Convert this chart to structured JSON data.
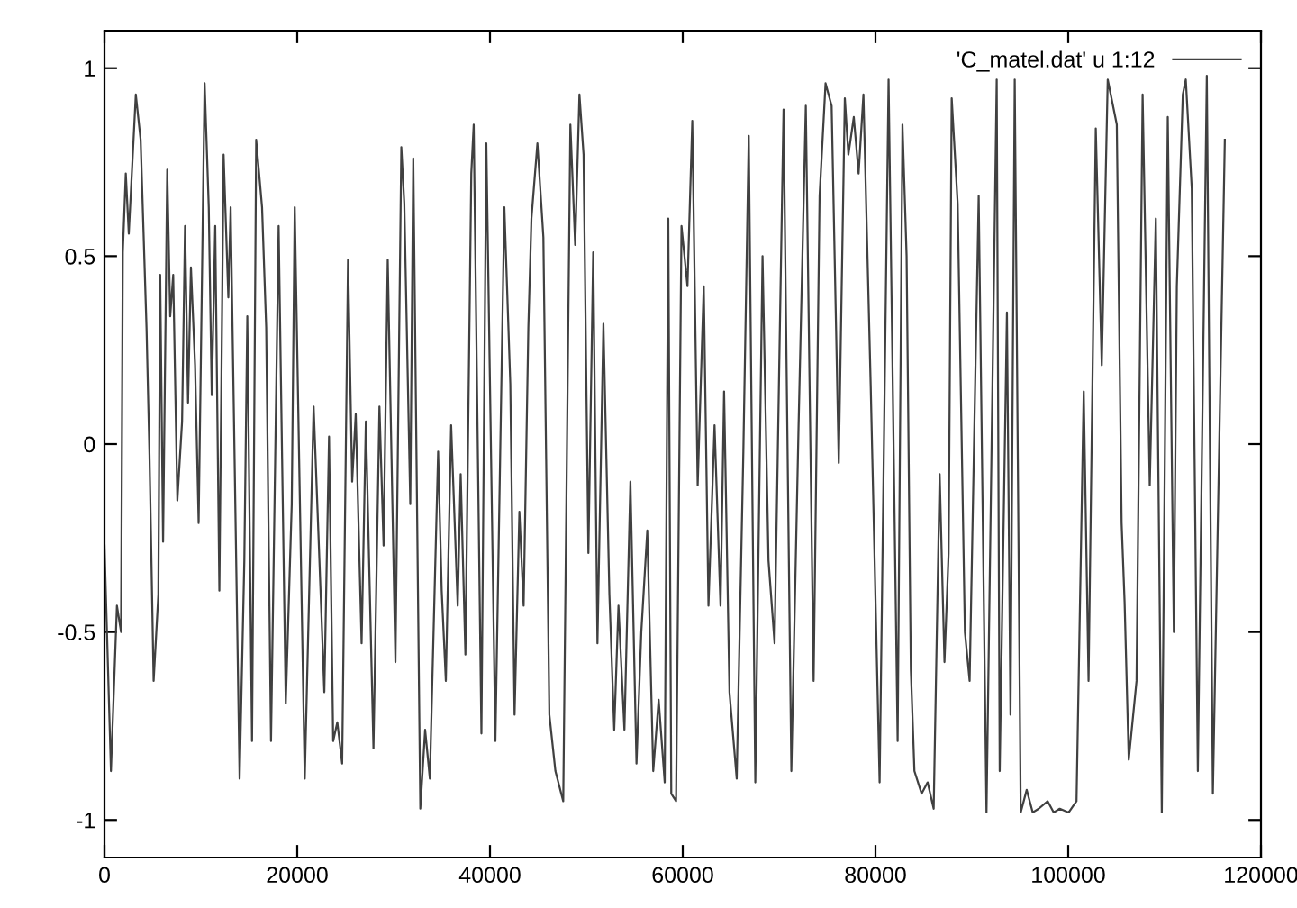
{
  "chart_data": {
    "type": "line",
    "xlim": [
      0,
      120000
    ],
    "xticks": [
      0,
      20000,
      40000,
      60000,
      80000,
      100000,
      120000
    ],
    "ylim": [
      -1.1,
      1.1
    ],
    "yticks": [
      -1,
      -0.5,
      0,
      0.5,
      1
    ],
    "grid": false,
    "legend": "top right",
    "marker": "none",
    "line_style": "solid",
    "series": [
      {
        "name": "'C_matel.dat' u 1:12",
        "color": "#404040",
        "x": [
          0,
          670,
          1290,
          1720,
          1900,
          2210,
          2520,
          3250,
          3750,
          4360,
          4670,
          5100,
          5590,
          5780,
          6080,
          6510,
          6820,
          7130,
          7560,
          8050,
          8360,
          8670,
          8970,
          9400,
          9770,
          10390,
          10820,
          11130,
          11490,
          11920,
          12360,
          12850,
          13090,
          14020,
          14510,
          14820,
          15310,
          15740,
          16350,
          16780,
          17280,
          18070,
          18810,
          19430,
          19740,
          20780,
          21700,
          22200,
          22810,
          23300,
          23730,
          24160,
          24660,
          25270,
          25700,
          26070,
          26680,
          27120,
          27910,
          28530,
          28960,
          29390,
          30190,
          30800,
          31110,
          31730,
          32040,
          32770,
          33270,
          33760,
          34620,
          34990,
          35420,
          35970,
          36650,
          36960,
          37450,
          38060,
          38310,
          39110,
          39620,
          40560,
          41490,
          42110,
          42550,
          43050,
          43490,
          43980,
          44300,
          44920,
          45540,
          46160,
          46790,
          47600,
          48340,
          48840,
          49280,
          49710,
          50210,
          50710,
          51150,
          51770,
          52390,
          52890,
          53330,
          53950,
          54570,
          55200,
          55700,
          56320,
          56940,
          57500,
          58130,
          58500,
          58810,
          59310,
          59870,
          60490,
          60990,
          61550,
          62180,
          62670,
          63300,
          63920,
          64290,
          64850,
          65600,
          66290,
          66850,
          67530,
          68280,
          68900,
          69530,
          70460,
          71270,
          72020,
          72770,
          73580,
          74200,
          74820,
          75450,
          76190,
          76820,
          77190,
          77750,
          78250,
          78750,
          79500,
          80430,
          81360,
          82300,
          82800,
          83230,
          83670,
          84040,
          84790,
          85410,
          86040,
          86660,
          87160,
          87590,
          87910,
          88530,
          89280,
          89770,
          90710,
          91520,
          92580,
          92890,
          93640,
          94010,
          94450,
          95070,
          95690,
          96320,
          96940,
          97870,
          98500,
          99120,
          100050,
          100860,
          101610,
          102110,
          102860,
          103480,
          104100,
          105040,
          105540,
          105850,
          106280,
          107090,
          107720,
          108460,
          109090,
          109710,
          110330,
          110960,
          111270,
          111890,
          112200,
          112820,
          113450,
          114380,
          115010,
          115820,
          116250
        ],
        "values": [
          -0.27,
          -0.87,
          -0.43,
          -0.5,
          0.51,
          0.72,
          0.56,
          0.93,
          0.81,
          0.31,
          -0.03,
          -0.63,
          -0.4,
          0.45,
          -0.26,
          0.73,
          0.34,
          0.45,
          -0.15,
          0.06,
          0.58,
          0.11,
          0.47,
          0.21,
          -0.21,
          0.96,
          0.63,
          0.13,
          0.58,
          -0.39,
          0.77,
          0.39,
          0.63,
          -0.89,
          -0.31,
          0.34,
          -0.79,
          0.81,
          0.63,
          0.31,
          -0.79,
          0.58,
          -0.69,
          -0.16,
          0.63,
          -0.89,
          0.1,
          -0.24,
          -0.66,
          0.02,
          -0.79,
          -0.74,
          -0.85,
          0.49,
          -0.1,
          0.08,
          -0.53,
          0.06,
          -0.81,
          0.1,
          -0.27,
          0.49,
          -0.58,
          0.79,
          0.64,
          -0.16,
          0.76,
          -0.97,
          -0.76,
          -0.89,
          -0.02,
          -0.39,
          -0.63,
          0.05,
          -0.43,
          -0.08,
          -0.56,
          0.72,
          0.85,
          -0.77,
          0.8,
          -0.79,
          0.63,
          0.16,
          -0.72,
          -0.18,
          -0.43,
          0.31,
          0.6,
          0.8,
          0.55,
          -0.72,
          -0.87,
          -0.95,
          0.85,
          0.53,
          0.93,
          0.77,
          -0.29,
          0.51,
          -0.53,
          0.32,
          -0.4,
          -0.76,
          -0.43,
          -0.76,
          -0.1,
          -0.85,
          -0.5,
          -0.23,
          -0.87,
          -0.68,
          -0.9,
          0.6,
          -0.93,
          -0.95,
          0.58,
          0.42,
          0.86,
          -0.11,
          0.42,
          -0.43,
          0.05,
          -0.43,
          0.14,
          -0.66,
          -0.89,
          -0.02,
          0.82,
          -0.9,
          0.5,
          -0.31,
          -0.53,
          0.89,
          -0.87,
          0.05,
          0.9,
          -0.63,
          0.66,
          0.96,
          0.9,
          -0.05,
          0.92,
          0.77,
          0.87,
          0.72,
          0.93,
          0.16,
          -0.9,
          0.97,
          -0.79,
          0.85,
          0.5,
          -0.6,
          -0.87,
          -0.93,
          -0.9,
          -0.97,
          -0.08,
          -0.58,
          -0.29,
          0.92,
          0.64,
          -0.5,
          -0.63,
          0.66,
          -0.98,
          0.97,
          -0.87,
          0.35,
          -0.72,
          0.97,
          -0.98,
          -0.92,
          -0.98,
          -0.97,
          -0.95,
          -0.98,
          -0.97,
          -0.98,
          -0.95,
          0.14,
          -0.63,
          0.84,
          0.21,
          0.97,
          0.85,
          -0.21,
          -0.42,
          -0.84,
          -0.63,
          0.93,
          -0.11,
          0.6,
          -0.98,
          0.87,
          -0.5,
          0.42,
          0.93,
          0.97,
          0.68,
          -0.87,
          0.98,
          -0.93,
          0.21,
          0.81
        ]
      }
    ]
  }
}
